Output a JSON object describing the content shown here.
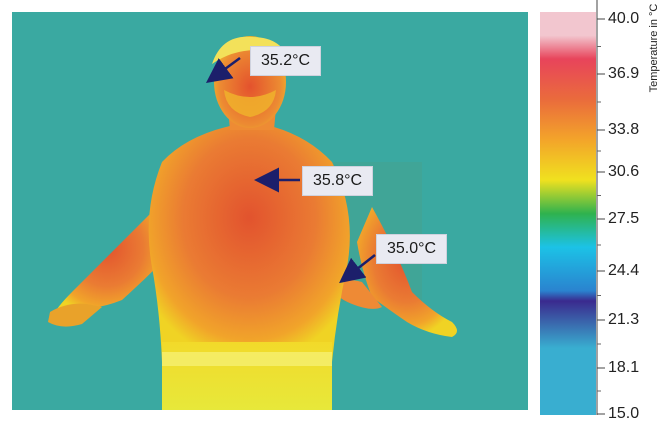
{
  "image": {
    "annotations": [
      {
        "text": "35.2°C",
        "target": "forehead"
      },
      {
        "text": "35.8°C",
        "target": "upper-chest"
      },
      {
        "text": "35.0°C",
        "target": "left-hand"
      }
    ]
  },
  "color_scale": {
    "title": "Temperature in °C",
    "ticks": [
      "40.0",
      "36.9",
      "33.8",
      "30.6",
      "27.5",
      "24.4",
      "21.3",
      "18.1",
      "15.0"
    ],
    "colors": [
      "#f2c6cf",
      "#e8445b",
      "#ea6b3c",
      "#f3a42a",
      "#f0e11f",
      "#2fb24e",
      "#1cc2e6",
      "#2a83cf",
      "#3a2a8e",
      "#39aed0"
    ]
  }
}
